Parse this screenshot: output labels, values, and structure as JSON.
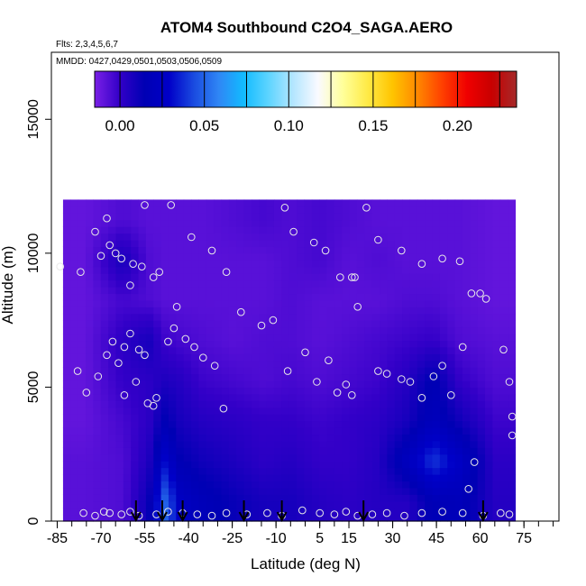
{
  "chart_data": {
    "type": "heatmap",
    "title": "ATOM4 Southbound C2O4_SAGA.AERO",
    "annotations": [
      "Flts: 2,3,4,5,6,7",
      "MMDD: 0427,0429,0501,0503,0506,0509"
    ],
    "xlabel": "Latitude (deg N)",
    "ylabel": "Altitude (m)",
    "xlim": [
      -87,
      87
    ],
    "ylim": [
      0,
      17500
    ],
    "x_ticks": [
      -85,
      -70,
      -55,
      -40,
      -25,
      -10,
      5,
      15,
      30,
      45,
      60,
      75
    ],
    "x_tick_labels": [
      "-85",
      "-70",
      "-55",
      "-40",
      "-25",
      "-10",
      "5",
      "15",
      "30",
      "45",
      "60",
      "75"
    ],
    "x_minor_step": 5,
    "y_ticks": [
      0,
      5000,
      10000,
      15000
    ],
    "y_tick_labels": [
      "0",
      "5000",
      "10000",
      "15000"
    ],
    "colorbar": {
      "range": [
        -0.015,
        0.235
      ],
      "ticks": [
        0.0,
        0.05,
        0.1,
        0.15,
        0.2
      ],
      "tick_labels": [
        "0.00",
        "0.05",
        "0.10",
        "0.15",
        "0.20"
      ],
      "colors": [
        "#7a20e6",
        "#3300c8",
        "#0000b4",
        "#0000c8",
        "#1a4be0",
        "#2f86f5",
        "#12bbff",
        "#5dd4ff",
        "#b4e6ff",
        "#fafaff",
        "#ffff9a",
        "#ffea46",
        "#ffc400",
        "#ff8800",
        "#ff4000",
        "#f00000",
        "#c80000",
        "#a52a2a"
      ]
    },
    "field": {
      "lat_edges": [
        -83,
        -68,
        -57,
        -50,
        -46,
        -40,
        -30,
        -18,
        -10,
        0,
        10,
        20,
        30,
        40,
        48,
        58,
        72
      ],
      "alt_edges": [
        0,
        1500,
        3000,
        4500,
        6000,
        7500,
        9000,
        10500,
        12000
      ],
      "values": [
        [
          -0.008,
          -0.006,
          0.012,
          0.05,
          0.025,
          0.018,
          0.012,
          0.008,
          0.008,
          0.004,
          0.002,
          0.004,
          0.004,
          0.016,
          0.018,
          0.004
        ],
        [
          -0.008,
          -0.006,
          0.006,
          0.03,
          0.015,
          0.01,
          0.006,
          0.002,
          0.004,
          0.0,
          0.0,
          0.004,
          0.022,
          0.04,
          0.026,
          0.002
        ],
        [
          -0.01,
          -0.004,
          0.002,
          0.015,
          0.008,
          0.004,
          0.002,
          0.0,
          0.0,
          -0.002,
          0.0,
          0.002,
          0.008,
          0.02,
          0.01,
          -0.002
        ],
        [
          -0.01,
          0.0,
          0.002,
          0.006,
          0.004,
          -0.002,
          -0.004,
          -0.006,
          -0.004,
          -0.006,
          -0.004,
          -0.002,
          0.004,
          0.016,
          0.0,
          -0.006
        ],
        [
          -0.01,
          0.002,
          0.008,
          -0.002,
          -0.004,
          -0.006,
          -0.008,
          -0.006,
          -0.006,
          -0.008,
          -0.006,
          -0.004,
          -0.002,
          0.0,
          -0.006,
          -0.008
        ],
        [
          -0.01,
          -0.004,
          -0.006,
          -0.008,
          -0.008,
          -0.008,
          -0.008,
          -0.008,
          -0.006,
          -0.008,
          -0.008,
          -0.008,
          -0.006,
          -0.006,
          -0.008,
          -0.01
        ],
        [
          -0.01,
          0.008,
          -0.006,
          -0.008,
          -0.008,
          -0.008,
          -0.008,
          -0.008,
          -0.006,
          -0.004,
          -0.008,
          -0.006,
          -0.008,
          -0.008,
          -0.008,
          -0.01
        ],
        [
          -0.01,
          -0.006,
          -0.008,
          -0.008,
          -0.008,
          -0.008,
          -0.006,
          -0.004,
          -0.006,
          -0.004,
          -0.006,
          -0.008,
          -0.008,
          -0.008,
          -0.008,
          -0.01
        ]
      ]
    },
    "samples": [
      {
        "lat": -76,
        "alt": 300
      },
      {
        "lat": -72,
        "alt": 200
      },
      {
        "lat": -69,
        "alt": 350
      },
      {
        "lat": -67,
        "alt": 300
      },
      {
        "lat": -63,
        "alt": 250
      },
      {
        "lat": -60,
        "alt": 350
      },
      {
        "lat": -57,
        "alt": 200
      },
      {
        "lat": -51,
        "alt": 250
      },
      {
        "lat": -47,
        "alt": 350
      },
      {
        "lat": -42,
        "alt": 300
      },
      {
        "lat": -37,
        "alt": 250
      },
      {
        "lat": -32,
        "alt": 200
      },
      {
        "lat": -27,
        "alt": 300
      },
      {
        "lat": -20,
        "alt": 250
      },
      {
        "lat": -13,
        "alt": 300
      },
      {
        "lat": -8,
        "alt": 200
      },
      {
        "lat": -1,
        "alt": 400
      },
      {
        "lat": 5,
        "alt": 300
      },
      {
        "lat": 10,
        "alt": 250
      },
      {
        "lat": 14,
        "alt": 350
      },
      {
        "lat": 18,
        "alt": 200
      },
      {
        "lat": 23,
        "alt": 250
      },
      {
        "lat": 28,
        "alt": 300
      },
      {
        "lat": 34,
        "alt": 200
      },
      {
        "lat": 40,
        "alt": 300
      },
      {
        "lat": 47,
        "alt": 350
      },
      {
        "lat": 54,
        "alt": 300
      },
      {
        "lat": 61,
        "alt": 200
      },
      {
        "lat": 67,
        "alt": 300
      },
      {
        "lat": 70,
        "alt": 250
      },
      {
        "lat": -78,
        "alt": 5600
      },
      {
        "lat": -75,
        "alt": 4800
      },
      {
        "lat": -71,
        "alt": 5400
      },
      {
        "lat": -68,
        "alt": 6200
      },
      {
        "lat": -66,
        "alt": 6700
      },
      {
        "lat": -64,
        "alt": 5900
      },
      {
        "lat": -62,
        "alt": 6500
      },
      {
        "lat": -60,
        "alt": 7000
      },
      {
        "lat": -57,
        "alt": 6400
      },
      {
        "lat": -55,
        "alt": 6200
      },
      {
        "lat": -62,
        "alt": 4700
      },
      {
        "lat": -58,
        "alt": 5200
      },
      {
        "lat": -54,
        "alt": 4400
      },
      {
        "lat": -52,
        "alt": 4300
      },
      {
        "lat": -51,
        "alt": 4600
      },
      {
        "lat": -47,
        "alt": 6700
      },
      {
        "lat": -45,
        "alt": 7200
      },
      {
        "lat": -41,
        "alt": 6800
      },
      {
        "lat": -38,
        "alt": 6500
      },
      {
        "lat": -35,
        "alt": 6100
      },
      {
        "lat": -31,
        "alt": 5800
      },
      {
        "lat": -28,
        "alt": 4200
      },
      {
        "lat": -15,
        "alt": 7300
      },
      {
        "lat": -11,
        "alt": 7500
      },
      {
        "lat": -6,
        "alt": 5600
      },
      {
        "lat": 0,
        "alt": 6300
      },
      {
        "lat": 4,
        "alt": 5200
      },
      {
        "lat": 8,
        "alt": 6000
      },
      {
        "lat": 11,
        "alt": 4800
      },
      {
        "lat": 14,
        "alt": 5100
      },
      {
        "lat": 16,
        "alt": 4700
      },
      {
        "lat": 25,
        "alt": 5600
      },
      {
        "lat": 28,
        "alt": 5500
      },
      {
        "lat": 33,
        "alt": 5300
      },
      {
        "lat": 36,
        "alt": 5200
      },
      {
        "lat": 40,
        "alt": 4600
      },
      {
        "lat": 44,
        "alt": 5400
      },
      {
        "lat": 47,
        "alt": 5800
      },
      {
        "lat": 50,
        "alt": 4700
      },
      {
        "lat": 54,
        "alt": 6500
      },
      {
        "lat": 58,
        "alt": 2200
      },
      {
        "lat": 56,
        "alt": 1200
      },
      {
        "lat": 68,
        "alt": 6400
      },
      {
        "lat": 70,
        "alt": 5200
      },
      {
        "lat": 71,
        "alt": 3900
      },
      {
        "lat": 71,
        "alt": 3200
      },
      {
        "lat": -84,
        "alt": 9500
      },
      {
        "lat": -77,
        "alt": 9300
      },
      {
        "lat": -70,
        "alt": 9900
      },
      {
        "lat": -67,
        "alt": 10300
      },
      {
        "lat": -65,
        "alt": 10000
      },
      {
        "lat": -63,
        "alt": 9800
      },
      {
        "lat": -59,
        "alt": 9600
      },
      {
        "lat": -56,
        "alt": 9500
      },
      {
        "lat": -60,
        "alt": 8800
      },
      {
        "lat": -52,
        "alt": 9100
      },
      {
        "lat": -50,
        "alt": 9300
      },
      {
        "lat": -44,
        "alt": 8000
      },
      {
        "lat": -39,
        "alt": 10600
      },
      {
        "lat": -32,
        "alt": 10100
      },
      {
        "lat": -27,
        "alt": 9300
      },
      {
        "lat": -22,
        "alt": 7800
      },
      {
        "lat": -7,
        "alt": 11700
      },
      {
        "lat": -4,
        "alt": 10800
      },
      {
        "lat": 3,
        "alt": 10400
      },
      {
        "lat": 7,
        "alt": 10100
      },
      {
        "lat": 12,
        "alt": 9100
      },
      {
        "lat": 16,
        "alt": 9100
      },
      {
        "lat": 17,
        "alt": 9100
      },
      {
        "lat": 18,
        "alt": 8000
      },
      {
        "lat": 21,
        "alt": 11700
      },
      {
        "lat": 25,
        "alt": 10500
      },
      {
        "lat": 33,
        "alt": 10100
      },
      {
        "lat": 40,
        "alt": 9600
      },
      {
        "lat": 47,
        "alt": 9800
      },
      {
        "lat": 53,
        "alt": 9700
      },
      {
        "lat": 57,
        "alt": 8500
      },
      {
        "lat": 60,
        "alt": 8500
      },
      {
        "lat": 62,
        "alt": 8300
      },
      {
        "lat": -72,
        "alt": 10800
      },
      {
        "lat": -68,
        "alt": 11300
      },
      {
        "lat": -55,
        "alt": 11800
      },
      {
        "lat": -46,
        "alt": 11800
      }
    ],
    "flight_markers_lat": [
      -58,
      -49,
      -42,
      -21,
      -8,
      20,
      61
    ]
  }
}
